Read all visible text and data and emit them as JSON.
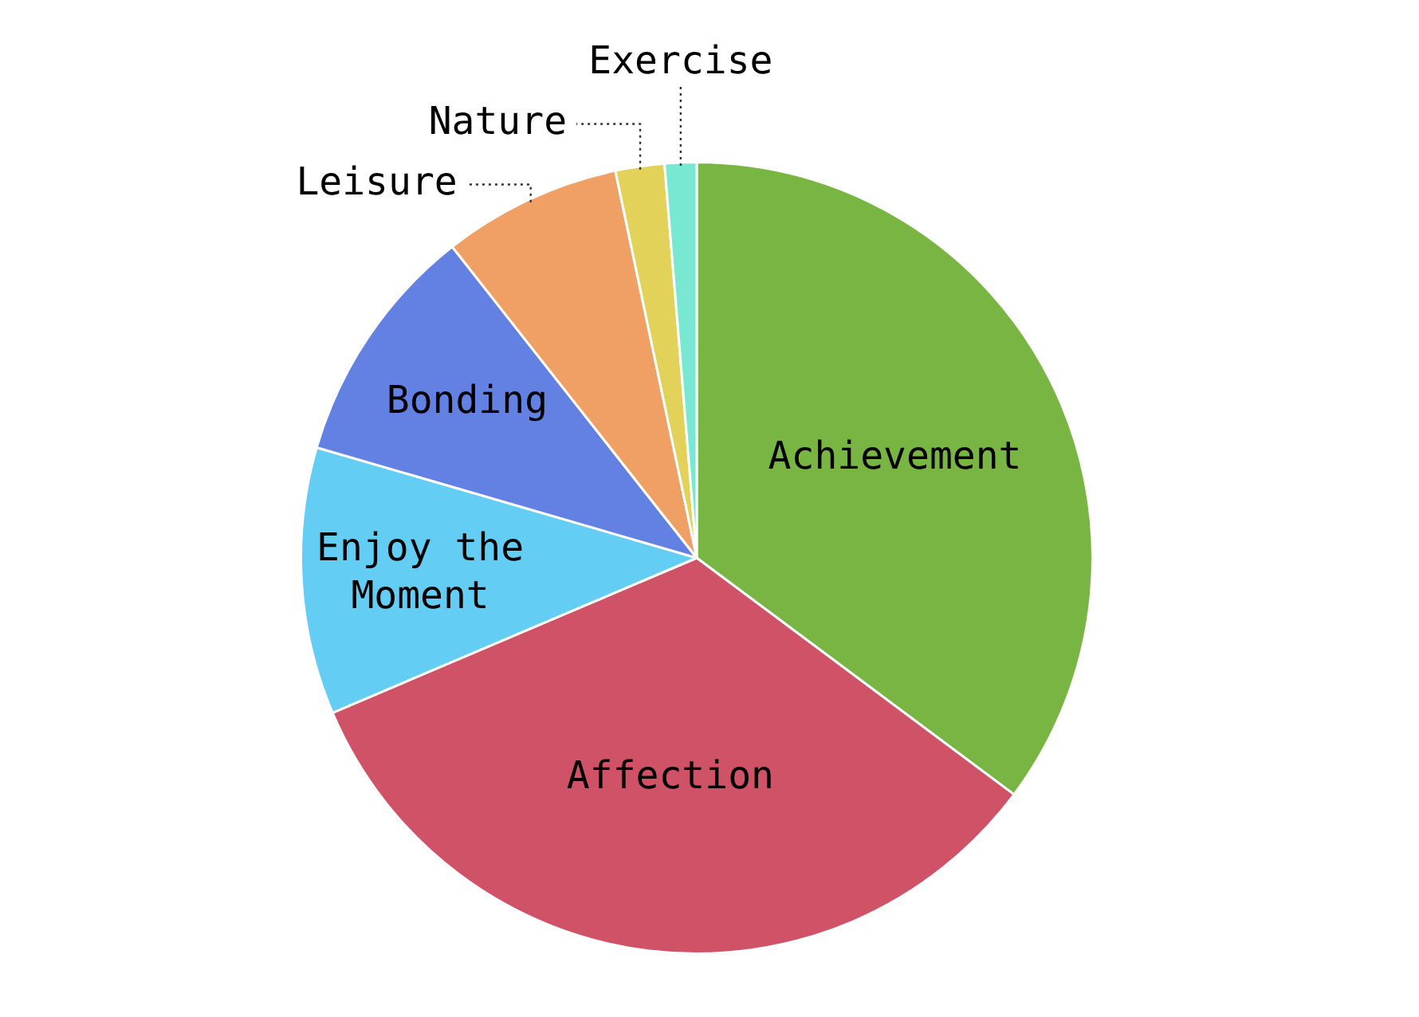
{
  "chart_data": {
    "type": "pie",
    "categories": [
      "Achievement",
      "Affection",
      "Enjoy the Moment",
      "Bonding",
      "Leisure",
      "Nature",
      "Exercise"
    ],
    "values": [
      35.2,
      33.4,
      10.9,
      9.9,
      7.3,
      2.0,
      1.3
    ],
    "colors": [
      "#78b543",
      "#cf5266",
      "#63cdf3",
      "#6380e3",
      "#f0a064",
      "#e3d25a",
      "#78e8d2"
    ]
  }
}
